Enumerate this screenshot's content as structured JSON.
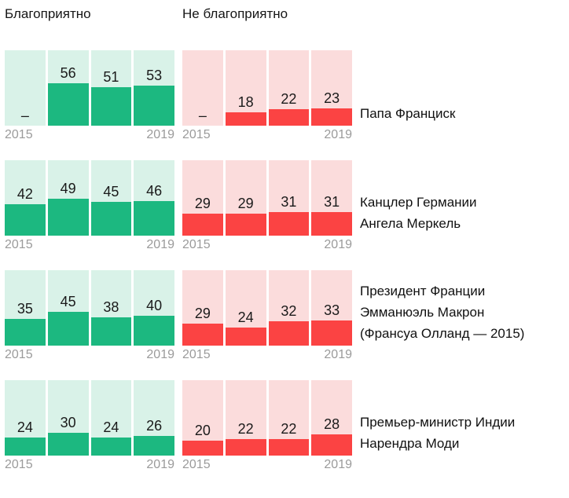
{
  "headers": {
    "favorable": "Благоприятно",
    "unfavorable": "Не благоприятно"
  },
  "colors": {
    "green_bar": "#1cb880",
    "green_bg": "#d9f2e8",
    "red_bar": "#fb4343",
    "red_bg": "#fbdcdc",
    "year_text": "#9b9b9b"
  },
  "year_start": "2015",
  "year_end": "2019",
  "no_data": "–",
  "chart_data": [
    {
      "type": "bar",
      "leader": "Папа Франциск",
      "name_lines": [
        "Папа Франциск"
      ],
      "x_range": [
        "2015",
        "2019"
      ],
      "ylim": [
        0,
        100
      ],
      "series": [
        {
          "name": "Благоприятно",
          "values": [
            null,
            56,
            51,
            53
          ]
        },
        {
          "name": "Не благоприятно",
          "values": [
            null,
            18,
            22,
            23
          ]
        }
      ]
    },
    {
      "type": "bar",
      "leader": "Канцлер Германии Ангела Меркель",
      "name_lines": [
        "Канцлер Германии",
        "Ангела Меркель"
      ],
      "x_range": [
        "2015",
        "2019"
      ],
      "ylim": [
        0,
        100
      ],
      "series": [
        {
          "name": "Благоприятно",
          "values": [
            42,
            49,
            45,
            46
          ]
        },
        {
          "name": "Не благоприятно",
          "values": [
            29,
            29,
            31,
            31
          ]
        }
      ]
    },
    {
      "type": "bar",
      "leader": "Президент Франции Эмманюэль Макрон (Франсуа Олланд — 2015)",
      "name_lines": [
        "Президент Франции",
        "Эмманюэль Макрон",
        "(Франсуа Олланд — 2015)"
      ],
      "x_range": [
        "2015",
        "2019"
      ],
      "ylim": [
        0,
        100
      ],
      "series": [
        {
          "name": "Благоприятно",
          "values": [
            35,
            45,
            38,
            40
          ]
        },
        {
          "name": "Не благоприятно",
          "values": [
            29,
            24,
            32,
            33
          ]
        }
      ]
    },
    {
      "type": "bar",
      "leader": "Премьер-министр Индии Нарендра Моди",
      "name_lines": [
        "Премьер-министр Индии",
        "Нарендра Моди"
      ],
      "x_range": [
        "2015",
        "2019"
      ],
      "ylim": [
        0,
        100
      ],
      "series": [
        {
          "name": "Благоприятно",
          "values": [
            24,
            30,
            24,
            26
          ]
        },
        {
          "name": "Не благоприятно",
          "values": [
            20,
            22,
            22,
            28
          ]
        }
      ]
    }
  ]
}
